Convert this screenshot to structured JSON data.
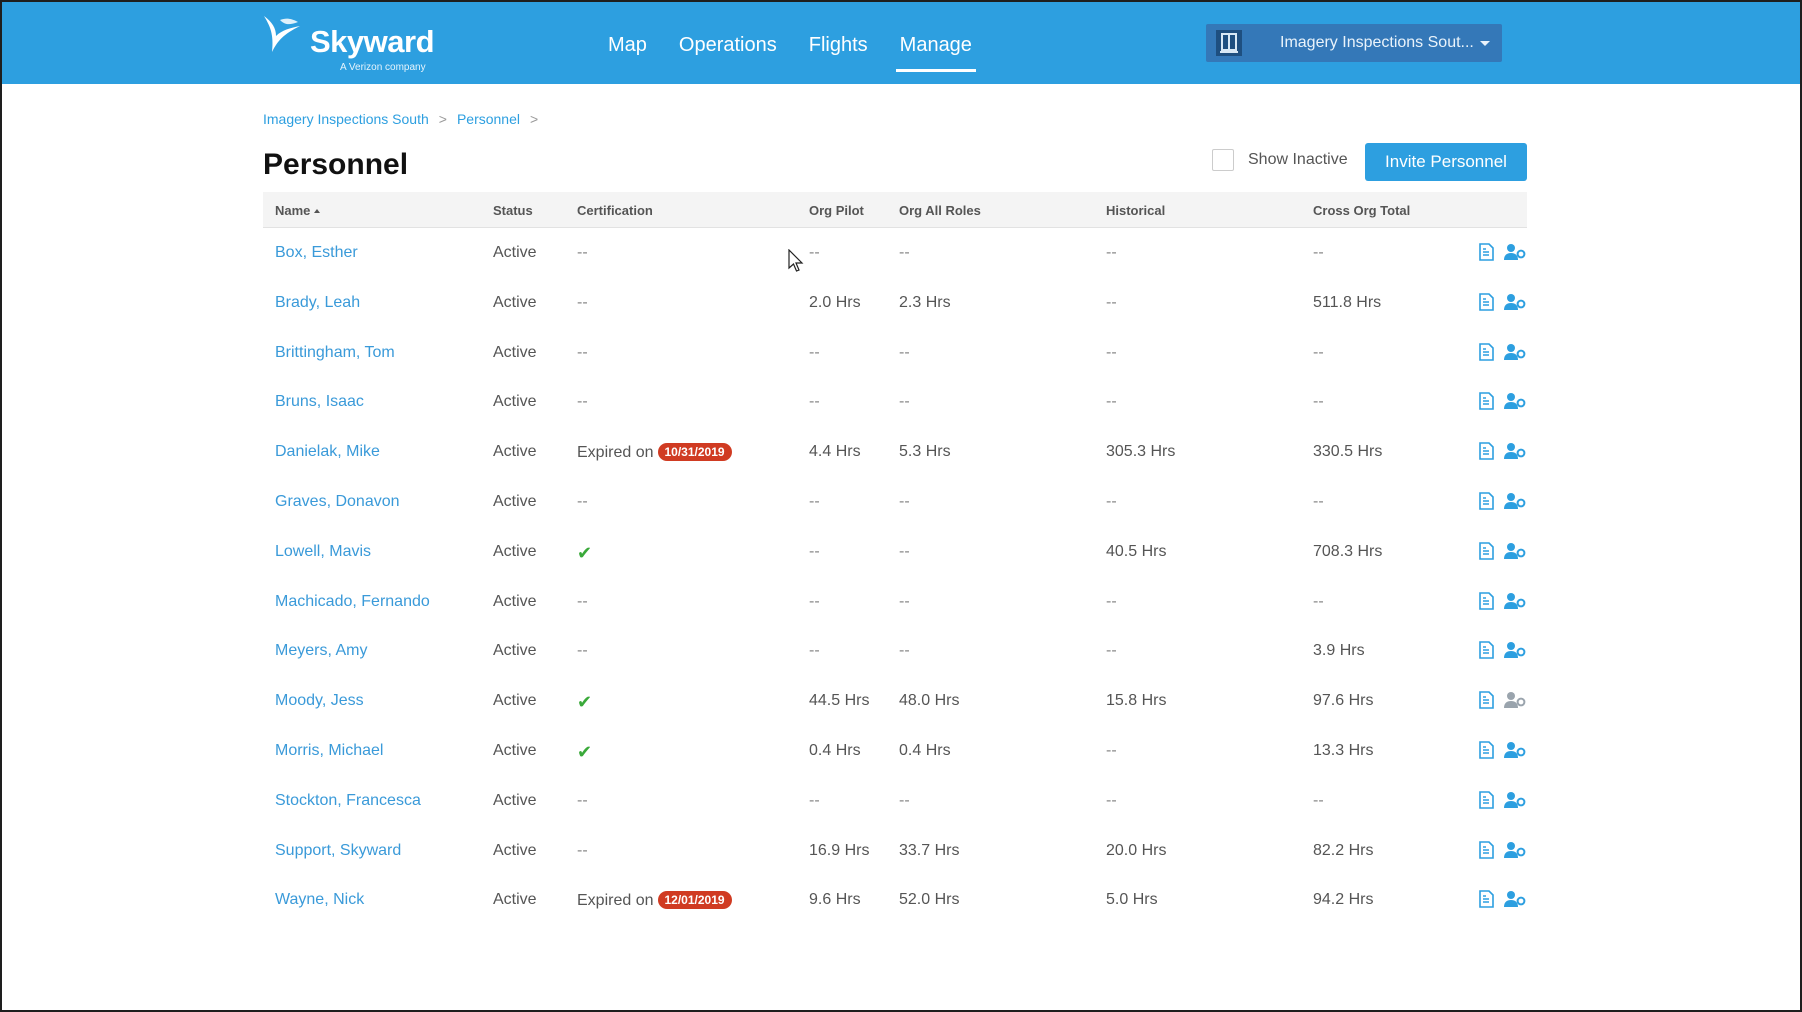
{
  "header": {
    "brand": "Skyward",
    "brand_sub": "A Verizon company",
    "nav": [
      {
        "label": "Map"
      },
      {
        "label": "Operations"
      },
      {
        "label": "Flights"
      },
      {
        "label": "Manage",
        "active": true
      }
    ],
    "org_select": {
      "value": "Imagery Inspections Sout..."
    }
  },
  "breadcrumb": {
    "items": [
      "Imagery Inspections South",
      "Personnel"
    ],
    "separator": ">"
  },
  "page": {
    "title": "Personnel",
    "show_inactive_label": "Show Inactive",
    "show_inactive_checked": false,
    "invite_label": "Invite Personnel"
  },
  "table": {
    "columns": [
      "Name",
      "Status",
      "Certification",
      "Org Pilot",
      "Org All Roles",
      "Historical",
      "Cross Org Total"
    ],
    "sort_column": "Name",
    "rows": [
      {
        "name": "Box, Esther",
        "status": "Active",
        "cert": "--",
        "cert_type": "none",
        "org_pilot": "--",
        "org_all": "--",
        "historical": "--",
        "cross_org": "--"
      },
      {
        "name": "Brady, Leah",
        "status": "Active",
        "cert": "--",
        "cert_type": "none",
        "org_pilot": "2.0 Hrs",
        "org_all": "2.3 Hrs",
        "historical": "--",
        "cross_org": "511.8 Hrs"
      },
      {
        "name": "Brittingham, Tom",
        "status": "Active",
        "cert": "--",
        "cert_type": "none",
        "org_pilot": "--",
        "org_all": "--",
        "historical": "--",
        "cross_org": "--"
      },
      {
        "name": "Bruns, Isaac",
        "status": "Active",
        "cert": "--",
        "cert_type": "none",
        "org_pilot": "--",
        "org_all": "--",
        "historical": "--",
        "cross_org": "--"
      },
      {
        "name": "Danielak, Mike",
        "status": "Active",
        "cert": "Expired on",
        "cert_date": "10/31/2019",
        "cert_type": "expired",
        "org_pilot": "4.4 Hrs",
        "org_all": "5.3 Hrs",
        "historical": "305.3 Hrs",
        "cross_org": "330.5 Hrs"
      },
      {
        "name": "Graves, Donavon",
        "status": "Active",
        "cert": "--",
        "cert_type": "none",
        "org_pilot": "--",
        "org_all": "--",
        "historical": "--",
        "cross_org": "--"
      },
      {
        "name": "Lowell, Mavis",
        "status": "Active",
        "cert": "✔",
        "cert_type": "valid",
        "org_pilot": "--",
        "org_all": "--",
        "historical": "40.5 Hrs",
        "cross_org": "708.3 Hrs"
      },
      {
        "name": "Machicado, Fernando",
        "status": "Active",
        "cert": "--",
        "cert_type": "none",
        "org_pilot": "--",
        "org_all": "--",
        "historical": "--",
        "cross_org": "--"
      },
      {
        "name": "Meyers, Amy",
        "status": "Active",
        "cert": "--",
        "cert_type": "none",
        "org_pilot": "--",
        "org_all": "--",
        "historical": "--",
        "cross_org": "3.9 Hrs"
      },
      {
        "name": "Moody, Jess",
        "status": "Active",
        "cert": "✔",
        "cert_type": "valid",
        "org_pilot": "44.5 Hrs",
        "org_all": "48.0 Hrs",
        "historical": "15.8 Hrs",
        "cross_org": "97.6 Hrs",
        "user_icon_muted": true
      },
      {
        "name": "Morris, Michael",
        "status": "Active",
        "cert": "✔",
        "cert_type": "valid",
        "org_pilot": "0.4 Hrs",
        "org_all": "0.4 Hrs",
        "historical": "--",
        "cross_org": "13.3 Hrs"
      },
      {
        "name": "Stockton, Francesca",
        "status": "Active",
        "cert": "--",
        "cert_type": "none",
        "org_pilot": "--",
        "org_all": "--",
        "historical": "--",
        "cross_org": "--"
      },
      {
        "name": "Support, Skyward",
        "status": "Active",
        "cert": "--",
        "cert_type": "none",
        "org_pilot": "16.9 Hrs",
        "org_all": "33.7 Hrs",
        "historical": "20.0 Hrs",
        "cross_org": "82.2 Hrs"
      },
      {
        "name": "Wayne, Nick",
        "status": "Active",
        "cert": "Expired on",
        "cert_date": "12/01/2019",
        "cert_type": "expired",
        "org_pilot": "9.6 Hrs",
        "org_all": "52.0 Hrs",
        "historical": "5.0 Hrs",
        "cross_org": "94.2 Hrs"
      }
    ]
  },
  "icons": {
    "logbook": "document-icon",
    "user_settings": "user-gear-icon"
  },
  "colors": {
    "header_bg": "#2d9fe0",
    "link": "#3a9ad9",
    "expired_badge": "#d03b22",
    "valid_check": "#3aa93a"
  }
}
